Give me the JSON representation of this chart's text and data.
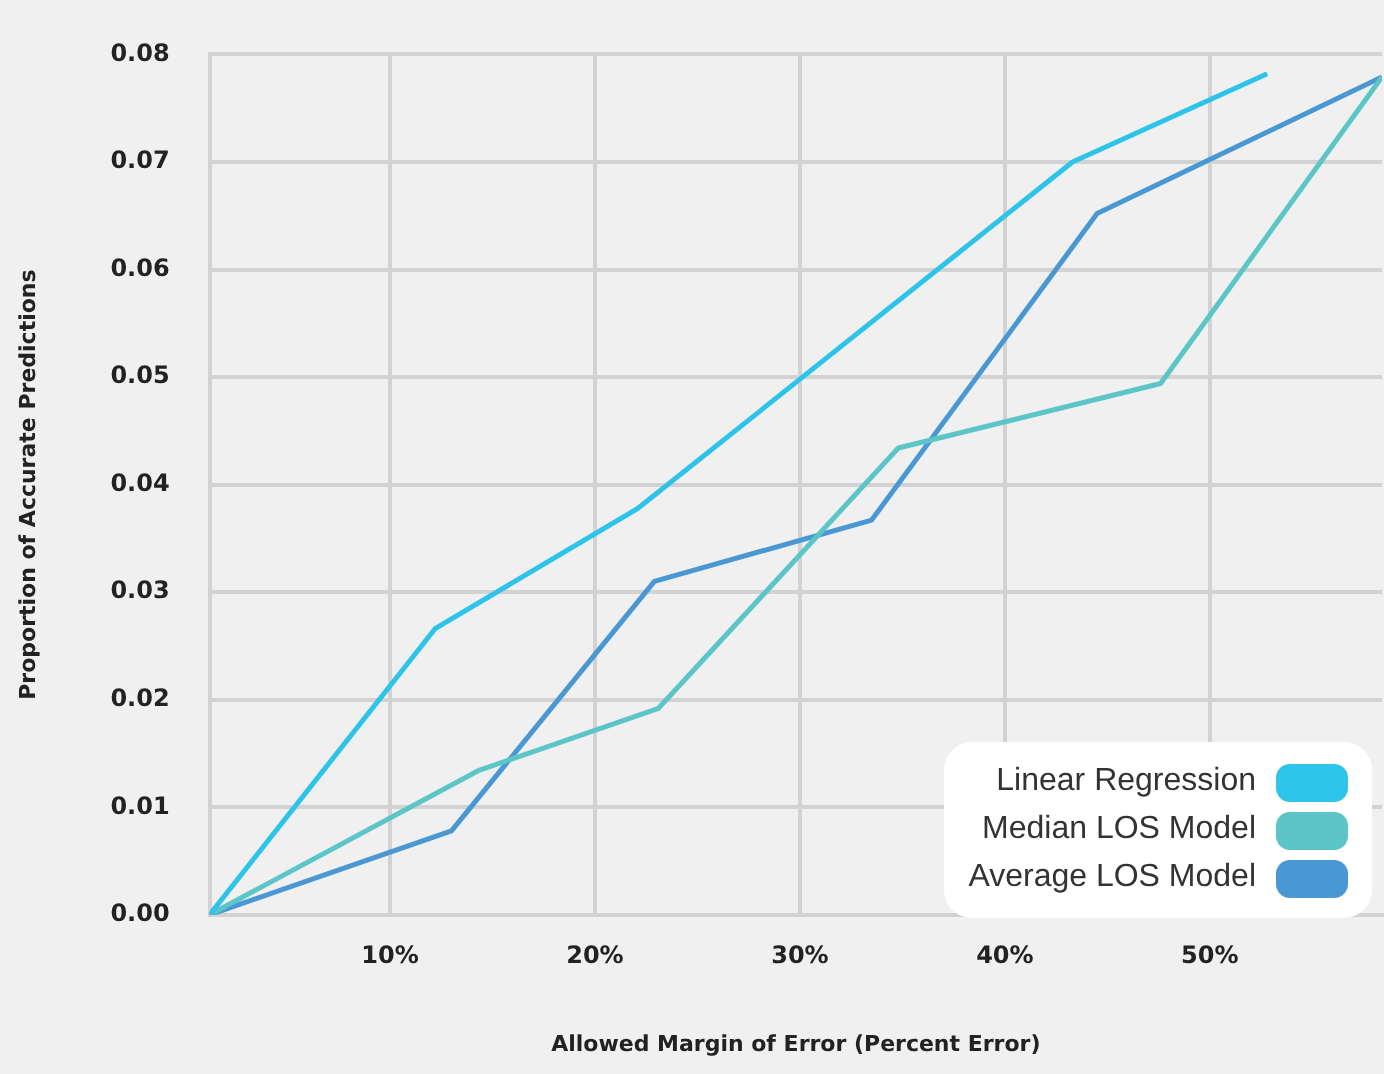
{
  "chart_data": {
    "type": "line",
    "xlabel": "Allowed Margin of Error (Percent Error)",
    "ylabel": "Proportion of Accurate Predictions",
    "xlim": [
      1.2,
      58.4
    ],
    "ylim": [
      0,
      0.08
    ],
    "xticks": [
      {
        "value": 10,
        "label": "10%"
      },
      {
        "value": 20,
        "label": "20%"
      },
      {
        "value": 30,
        "label": "30%"
      },
      {
        "value": 40,
        "label": "40%"
      },
      {
        "value": 50,
        "label": "50%"
      }
    ],
    "yticks": [
      {
        "value": 0,
        "label": "0.00"
      },
      {
        "value": 0.01,
        "label": "0.01"
      },
      {
        "value": 0.02,
        "label": "0.02"
      },
      {
        "value": 0.03,
        "label": "0.03"
      },
      {
        "value": 0.04,
        "label": "0.04"
      },
      {
        "value": 0.05,
        "label": "0.05"
      },
      {
        "value": 0.06,
        "label": "0.06"
      },
      {
        "value": 0.07,
        "label": "0.07"
      },
      {
        "value": 0.08,
        "label": "0.08"
      }
    ],
    "grid": true,
    "legend": "bottom right",
    "marker": "none",
    "line_style": "solid",
    "series": [
      {
        "name": "Linear Regression",
        "color": "#2ec4ea",
        "x": [
          1.2,
          12.2,
          22.1,
          43.3,
          52.8
        ],
        "values": [
          0,
          0.0266,
          0.0378,
          0.07,
          0.0782
        ]
      },
      {
        "name": "Median LOS Model",
        "color": "#5bc5c8",
        "x": [
          1.2,
          14.3,
          23.1,
          34.8,
          47.6,
          58.4
        ],
        "values": [
          0,
          0.0134,
          0.0192,
          0.0434,
          0.0494,
          0.0779
        ]
      },
      {
        "name": "Average LOS Model",
        "color": "#4a98d3",
        "x": [
          1.2,
          13.0,
          22.9,
          33.5,
          44.5,
          58.4
        ],
        "values": [
          0,
          0.0078,
          0.031,
          0.0367,
          0.0652,
          0.0779
        ]
      }
    ]
  }
}
